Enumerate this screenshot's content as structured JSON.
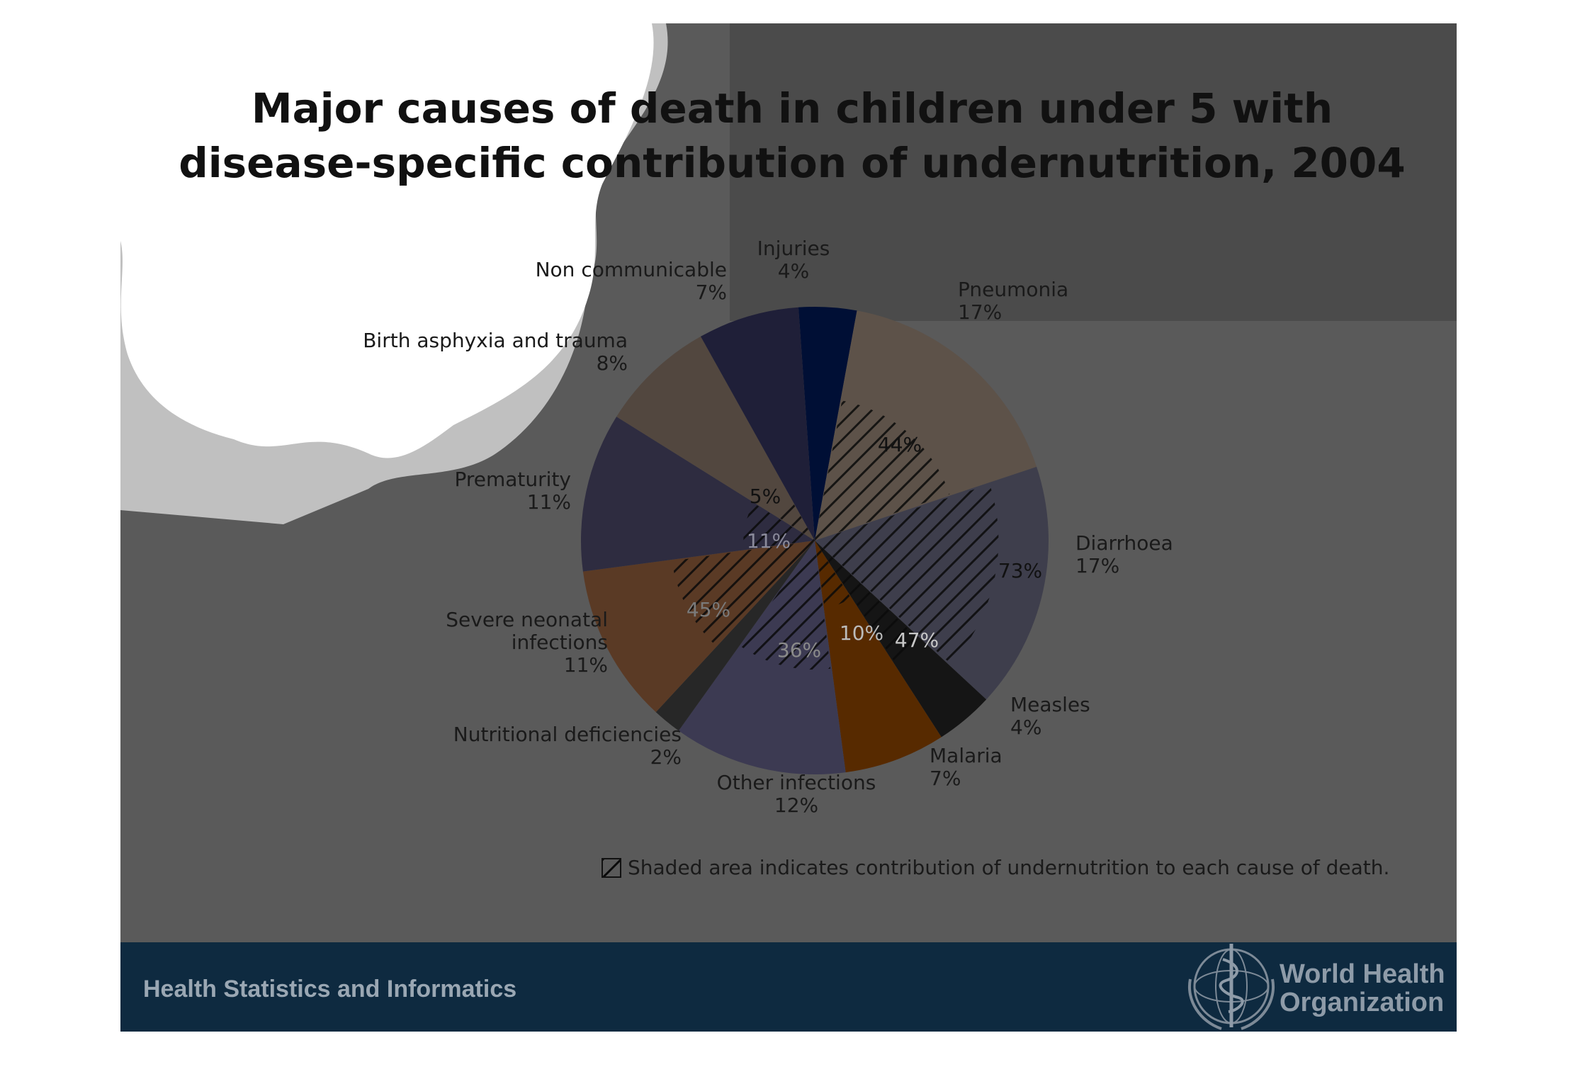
{
  "slide": {
    "title_line1": "Major causes of death in children under 5 with",
    "title_line2": "disease-specific contribution of undernutrition, 2004",
    "footnote": "Shaded area indicates contribution of undernutrition to each cause of death.",
    "footer_left": "Health Statistics and Informatics",
    "org_line1": "World Health",
    "org_line2": "Organization",
    "colors": {
      "background": "#5a5a5a",
      "footer_band": "#0e2a40"
    }
  },
  "chart_data": {
    "type": "pie",
    "title": "Major causes of death in children under 5 with disease-specific contribution of undernutrition, 2004",
    "unit": "%",
    "slices": [
      {
        "label": "Injuries",
        "value": 4,
        "value_text": "4%",
        "color": "#000f35",
        "undernutrition_pct": null
      },
      {
        "label": "Pneumonia",
        "value": 17,
        "value_text": "17%",
        "color": "#5d5249",
        "undernutrition_pct": 44,
        "undernutrition_text": "44%"
      },
      {
        "label": "Diarrhoea",
        "value": 17,
        "value_text": "17%",
        "color": "#3e3e4c",
        "undernutrition_pct": 73,
        "undernutrition_text": "73%"
      },
      {
        "label": "Measles",
        "value": 4,
        "value_text": "4%",
        "color": "#151515",
        "undernutrition_pct": 47,
        "undernutrition_text": "47%"
      },
      {
        "label": "Malaria",
        "value": 7,
        "value_text": "7%",
        "color": "#572a00",
        "undernutrition_pct": 10,
        "undernutrition_text": "10%"
      },
      {
        "label": "Other infections",
        "value": 12,
        "value_text": "12%",
        "color": "#3c3a52",
        "undernutrition_pct": 36,
        "undernutrition_text": "36%"
      },
      {
        "label": "Nutritional deficiencies",
        "value": 2,
        "value_text": "2%",
        "color": "#272727",
        "undernutrition_pct": null
      },
      {
        "label": "Severe neonatal infections",
        "value": 11,
        "value_text": "11%",
        "color": "#5a3a25",
        "undernutrition_pct": 45,
        "undernutrition_text": "45%"
      },
      {
        "label": "Prematurity",
        "value": 11,
        "value_text": "11%",
        "color": "#2e2c40",
        "undernutrition_pct": 11,
        "undernutrition_text": "11%"
      },
      {
        "label": "Birth asphyxia and trauma",
        "value": 8,
        "value_text": "8%",
        "color": "#52473f",
        "undernutrition_pct": 5,
        "undernutrition_text": "5%"
      },
      {
        "label": "Non communicable",
        "value": 7,
        "value_text": "7%",
        "color": "#1f1f38",
        "undernutrition_pct": null
      }
    ],
    "legend_position": "bottom"
  }
}
